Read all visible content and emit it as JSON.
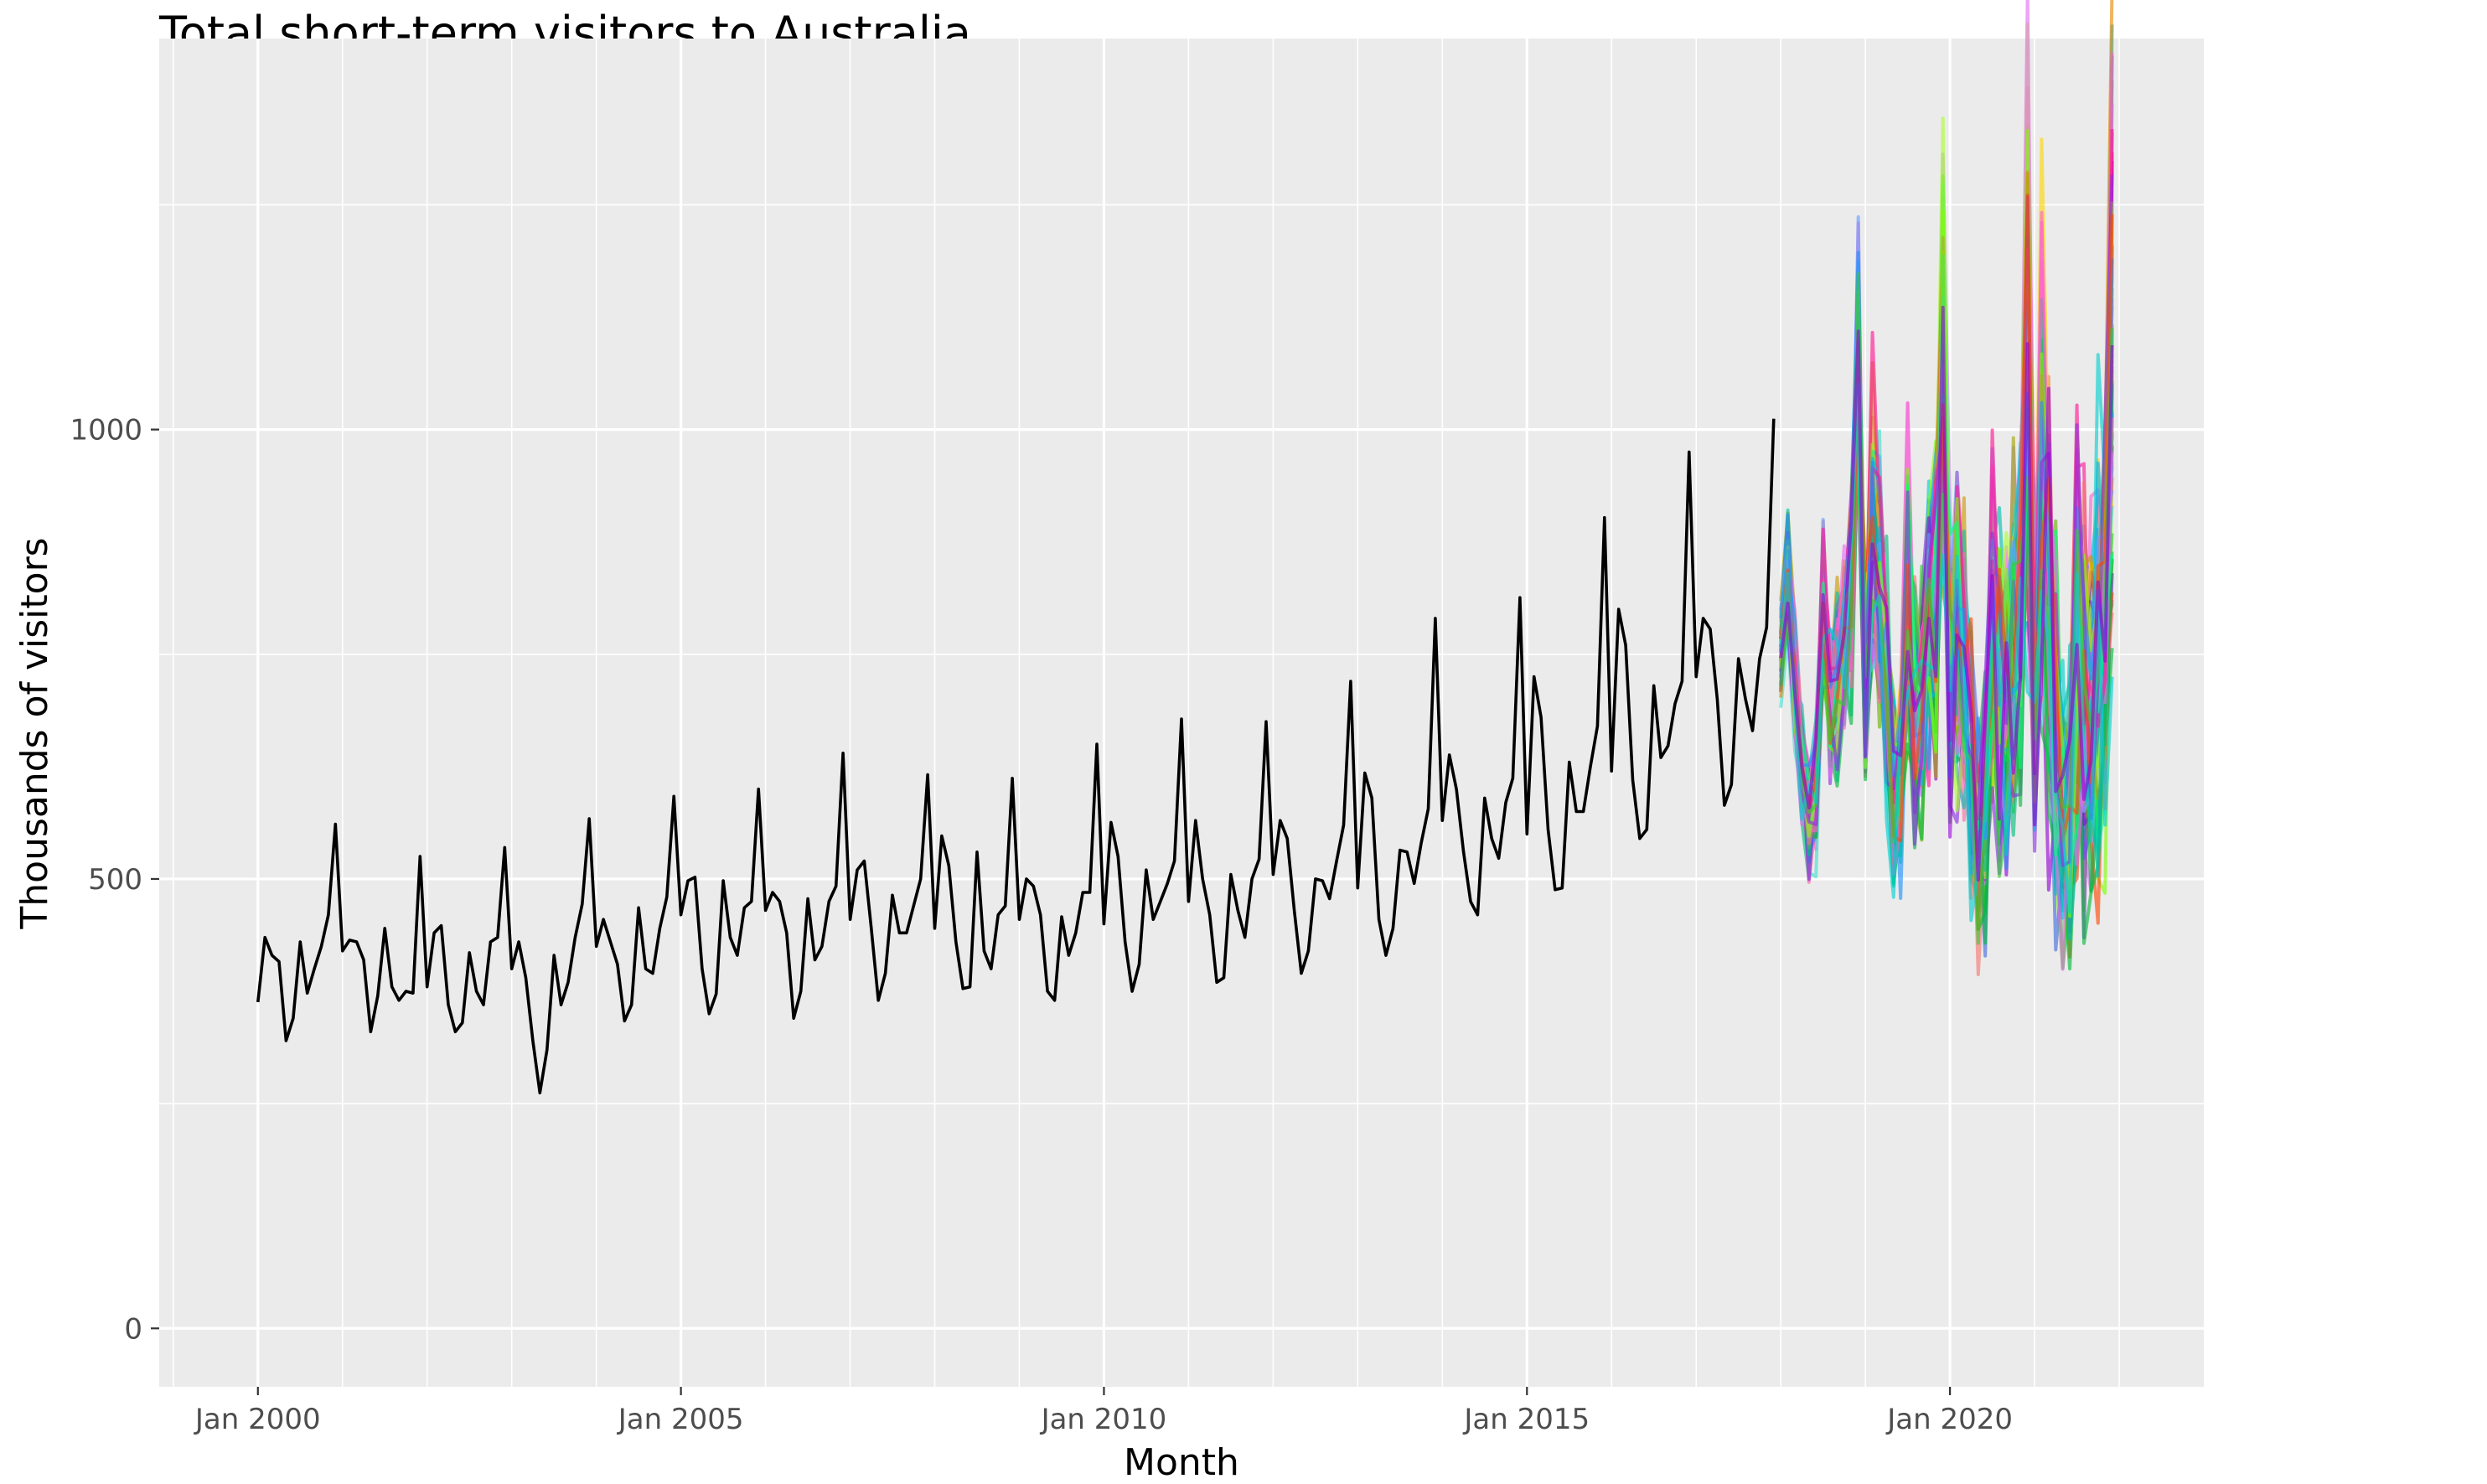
{
  "chart_data": {
    "type": "line",
    "title": "Total short-term visitors to Australia",
    "xlabel": "Month",
    "ylabel": "Thousands of visitors",
    "x_range": [
      "1998-11",
      "2023-01"
    ],
    "ylim": [
      -65,
      1435
    ],
    "x_ticks": [
      {
        "date": "2000-01",
        "label": "Jan 2000"
      },
      {
        "date": "2005-01",
        "label": "Jan 2005"
      },
      {
        "date": "2010-01",
        "label": "Jan 2010"
      },
      {
        "date": "2015-01",
        "label": "Jan 2015"
      },
      {
        "date": "2020-01",
        "label": "Jan 2020"
      }
    ],
    "y_ticks": [
      0,
      500,
      1000
    ],
    "grid": true,
    "legend": "none",
    "colors": {
      "panel_background": "#ebebeb",
      "grid": "#ffffff",
      "history_line": "#000000"
    },
    "series": [
      {
        "start": "2000-01",
        "values": [
          363,
          435,
          415,
          408,
          320,
          345,
          430,
          373,
          400,
          425,
          460,
          561,
          420,
          432,
          430,
          410,
          330,
          370,
          445,
          380,
          365,
          375,
          373,
          525,
          380,
          440,
          448,
          360,
          330,
          340,
          418,
          375,
          360,
          430,
          435,
          535,
          400,
          430,
          390,
          320,
          262,
          310,
          415,
          360,
          385,
          435,
          472,
          567,
          425,
          455,
          430,
          405,
          342,
          360,
          468,
          400,
          395,
          445,
          480,
          592,
          460,
          498,
          502,
          400,
          350,
          372,
          498,
          435,
          415,
          468,
          475,
          600,
          465,
          485,
          475,
          440,
          345,
          375,
          478,
          410,
          425,
          475,
          492,
          640,
          455,
          510,
          520,
          445,
          365,
          395,
          482,
          440,
          440,
          470,
          500,
          616,
          445,
          548,
          515,
          430,
          378,
          380,
          530,
          420,
          400,
          460,
          470,
          612,
          455,
          500,
          492,
          460,
          375,
          365,
          458,
          415,
          440,
          485,
          485,
          650,
          450,
          563,
          525,
          430,
          375,
          405,
          510,
          455,
          475,
          495,
          520,
          678,
          475,
          565,
          500,
          460,
          385,
          390,
          505,
          465,
          435,
          500,
          522,
          675,
          505,
          565,
          545,
          465,
          395,
          420,
          500,
          498,
          478,
          520,
          560,
          720,
          490,
          618,
          590,
          455,
          415,
          445,
          532,
          530,
          495,
          540,
          578,
          790,
          565,
          638,
          600,
          530,
          475,
          460,
          590,
          545,
          523,
          585,
          612,
          813,
          550,
          725,
          680,
          555,
          488,
          490,
          630,
          575,
          575,
          625,
          670,
          902,
          620,
          800,
          760,
          610,
          545,
          555,
          715,
          635,
          648,
          695,
          720,
          975,
          725,
          790,
          778,
          700,
          582,
          605,
          745,
          700,
          665,
          745,
          780,
          1012
        ]
      }
    ],
    "forecast_paths": {
      "start": "2018-01",
      "count": 80,
      "base": [
        755,
        828,
        720,
        625,
        568,
        600,
        800,
        690,
        720,
        770,
        820,
        1050,
        705,
        872,
        838,
        712,
        590,
        615,
        822,
        700,
        702,
        765,
        815,
        1045,
        718,
        770,
        742,
        623,
        557,
        580,
        772,
        702,
        688,
        758,
        800,
        1072,
        728,
        945,
        815,
        640,
        558,
        572,
        762,
        680,
        672,
        742,
        790,
        1080
      ],
      "colors": [
        "#F8766D",
        "#E58700",
        "#C99800",
        "#A3A500",
        "#6BB100",
        "#00BA38",
        "#00BF7D",
        "#00C0AF",
        "#00BCD8",
        "#00B0F6",
        "#619CFF",
        "#B983FF",
        "#E76BF3",
        "#FD61D1",
        "#FF67A4",
        "#FF1493",
        "#7FFF00",
        "#00FF7F",
        "#1E90FF",
        "#8A2BE2",
        "#FF4500",
        "#32CD32",
        "#00CED1",
        "#9400D3",
        "#FFD700",
        "#ADFF2F",
        "#40E0D0",
        "#4169E1"
      ]
    }
  }
}
